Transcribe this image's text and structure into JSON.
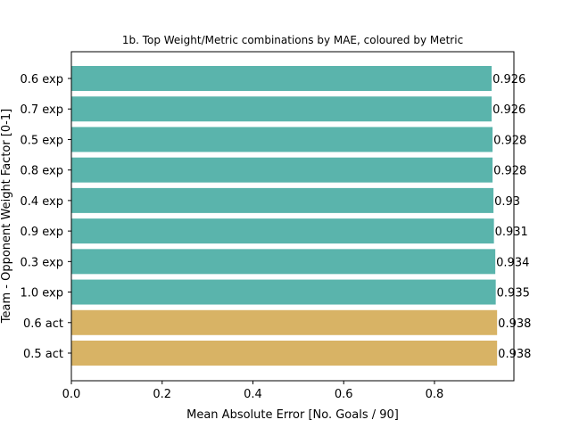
{
  "chart_data": {
    "type": "bar",
    "orientation": "horizontal",
    "title": "1b. Top Weight/Metric combinations by MAE, coloured by Metric",
    "xlabel": "Mean Absolute Error [No. Goals / 90]",
    "ylabel": "Team - Opponent Weight Factor [0-1]",
    "xlim": [
      0,
      0.975
    ],
    "xticks": [
      "0.0",
      "0.2",
      "0.4",
      "0.6",
      "0.8"
    ],
    "categories": [
      "0.6 exp",
      "0.7 exp",
      "0.5 exp",
      "0.8 exp",
      "0.4 exp",
      "0.9 exp",
      "0.3 exp",
      "1.0 exp",
      "0.6 act",
      "0.5 act"
    ],
    "values": [
      0.926,
      0.926,
      0.928,
      0.928,
      0.93,
      0.931,
      0.934,
      0.935,
      0.938,
      0.938
    ],
    "data_labels": [
      "0.926",
      "0.926",
      "0.928",
      "0.928",
      "0.93",
      "0.931",
      "0.934",
      "0.935",
      "0.938",
      "0.938"
    ],
    "metric": [
      "exp",
      "exp",
      "exp",
      "exp",
      "exp",
      "exp",
      "exp",
      "exp",
      "act",
      "act"
    ],
    "colors": {
      "exp": "#5ab4ac",
      "act": "#d8b365"
    },
    "grid": false,
    "legend": "none"
  }
}
